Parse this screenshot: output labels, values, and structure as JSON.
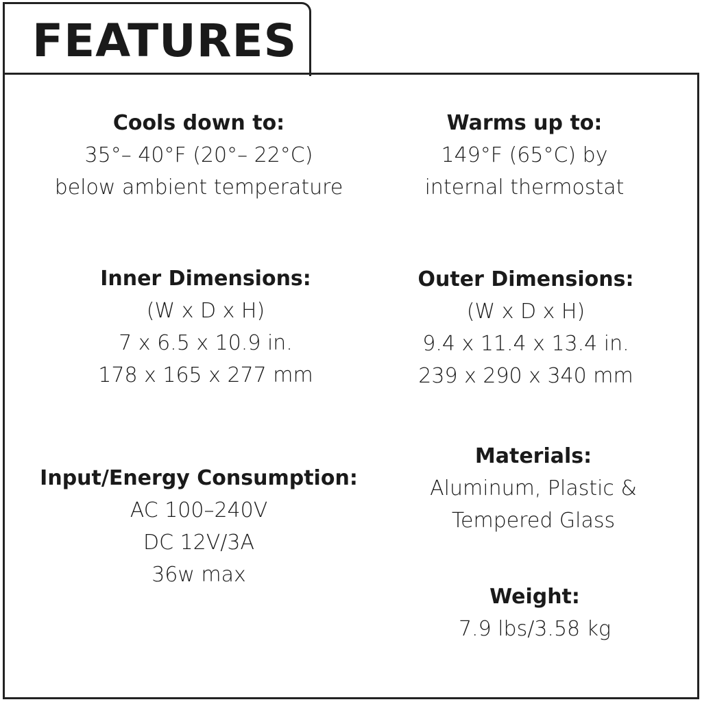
{
  "header": {
    "title": "FEATURES"
  },
  "features": [
    {
      "title": "Cools down to:",
      "lines": [
        "35°– 40°F (20°– 22°C)",
        "below ambient temperature"
      ]
    },
    {
      "title": "Warms up to:",
      "lines": [
        "149°F (65°C) by",
        "internal thermostat"
      ]
    },
    {
      "title": "Inner Dimensions:",
      "lines": [
        "(W x D x H)",
        "7 x 6.5 x 10.9 in.",
        "178 x 165 x 277 mm"
      ]
    },
    {
      "title": "Outer Dimensions:",
      "lines": [
        "(W x D x H)",
        "9.4 x 11.4 x 13.4 in.",
        "239 x 290 x 340 mm"
      ]
    },
    {
      "title": "Input/Energy Consumption:",
      "lines": [
        "AC 100–240V",
        "DC 12V/3A",
        "36w max"
      ]
    },
    {
      "title": "Materials:",
      "lines": [
        "Aluminum, Plastic &",
        "Tempered Glass"
      ]
    },
    {
      "title": "Weight:",
      "lines": [
        "7.9 lbs/3.58 kg"
      ]
    }
  ]
}
